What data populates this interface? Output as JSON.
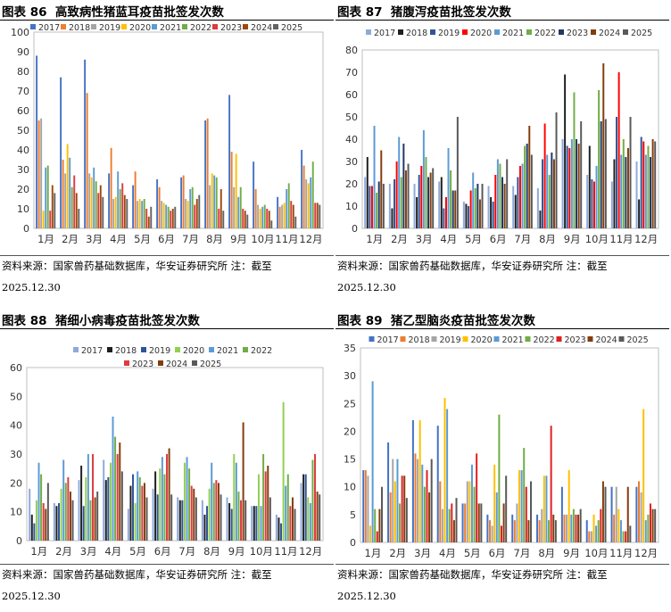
{
  "source_label": "资料来源：国家兽药基础数据库，华安证券研究所 注：截至",
  "source_date": "2025.12.30",
  "charts": [
    {
      "id": "fig86",
      "fig_no": "图表 86",
      "fig_title": "高致病性猪蓝耳疫苗批签发次数",
      "chart_data": {
        "type": "bar",
        "title": "高致病性猪蓝耳疫苗批签发次数",
        "categories": [
          "1月",
          "2月",
          "3月",
          "4月",
          "5月",
          "6月",
          "7月",
          "8月",
          "9月",
          "10月",
          "11月",
          "12月"
        ],
        "ylim": [
          0,
          100
        ],
        "yticks": [
          0,
          10,
          20,
          30,
          40,
          50,
          60,
          70,
          80,
          90,
          100
        ],
        "legend_position": "top",
        "series": [
          {
            "name": "2017",
            "color": "#4472C4",
            "values": [
              88,
              77,
              86,
              28,
              22,
              25,
              26,
              55,
              68,
              34,
              16,
              40
            ]
          },
          {
            "name": "2018",
            "color": "#ED7D31",
            "values": [
              55,
              35,
              69,
              41,
              29,
              21,
              27,
              56,
              39,
              20,
              11,
              32
            ]
          },
          {
            "name": "2019",
            "color": "#A5A5A5",
            "values": [
              56,
              28,
              28,
              15,
              14,
              14,
              15,
              22,
              21,
              12,
              12,
              25
            ]
          },
          {
            "name": "2020",
            "color": "#FFC000",
            "values": [
              9,
              43,
              26,
              16,
              15,
              13,
              14,
              28,
              38,
              10,
              13,
              23
            ]
          },
          {
            "name": "2021",
            "color": "#5B9BD5",
            "values": [
              31,
              36,
              31,
              29,
              14,
              12,
              20,
              27,
              16,
              11,
              20,
              26
            ]
          },
          {
            "name": "2022",
            "color": "#70AD47",
            "values": [
              32,
              21,
              24,
              20,
              15,
              11,
              21,
              26,
              21,
              12,
              23,
              34
            ]
          },
          {
            "name": "2023",
            "color": "#E0393E",
            "values": [
              9,
              27,
              18,
              23,
              10,
              9,
              12,
              10,
              10,
              10,
              14,
              13
            ]
          },
          {
            "name": "2024",
            "color": "#9E480E",
            "values": [
              22,
              18,
              22,
              17,
              6,
              10,
              15,
              20,
              9,
              9,
              12,
              13
            ]
          },
          {
            "name": "2025",
            "color": "#636363",
            "values": [
              18,
              10,
              16,
              15,
              11,
              11,
              17,
              9,
              7,
              4,
              6,
              12
            ]
          }
        ]
      }
    },
    {
      "id": "fig87",
      "fig_no": "图表 87",
      "fig_title": "猪腹泻疫苗批签发次数",
      "chart_data": {
        "type": "bar",
        "title": "猪腹泻疫苗批签发次数",
        "categories": [
          "1月",
          "2月",
          "3月",
          "4月",
          "5月",
          "6月",
          "7月",
          "8月",
          "9月",
          "10月",
          "11月",
          "12月"
        ],
        "ylim": [
          0,
          80
        ],
        "yticks": [
          0,
          10,
          20,
          30,
          40,
          50,
          60,
          70,
          80
        ],
        "legend_position": "top",
        "series": [
          {
            "name": "2017",
            "color": "#8EA9DB",
            "values": [
              23,
              20,
              20,
              21,
              12,
              19,
              19,
              18,
              40,
              24,
              21,
              30
            ]
          },
          {
            "name": "2018",
            "color": "#1F1F1F",
            "values": [
              32,
              9,
              14,
              23,
              11,
              14,
              15,
              8,
              69,
              37,
              31,
              13
            ]
          },
          {
            "name": "2019",
            "color": "#2F5597",
            "values": [
              19,
              22,
              24,
              9,
              10,
              12,
              23,
              31,
              37,
              22,
              50,
              41
            ]
          },
          {
            "name": "2020",
            "color": "#FF0000",
            "values": [
              19,
              30,
              28,
              14,
              17,
              24,
              28,
              47,
              36,
              21,
              70,
              39
            ]
          },
          {
            "name": "2021",
            "color": "#5B9BD5",
            "values": [
              46,
              41,
              44,
              36,
              25,
              31,
              29,
              33,
              40,
              28,
              33,
              33
            ]
          },
          {
            "name": "2022",
            "color": "#70AD47",
            "values": [
              16,
              23,
              32,
              26,
              18,
              29,
              37,
              24,
              61,
              62,
              40,
              37
            ]
          },
          {
            "name": "2023",
            "color": "#1F3864",
            "values": [
              21,
              38,
              23,
              17,
              20,
              23,
              38,
              34,
              40,
              48,
              32,
              32
            ]
          },
          {
            "name": "2024",
            "color": "#843C0C",
            "values": [
              35,
              26,
              25,
              17,
              13,
              20,
              46,
              31,
              38,
              74,
              36,
              40
            ]
          },
          {
            "name": "2025",
            "color": "#595959",
            "values": [
              20,
              29,
              27,
              50,
              20,
              31,
              33,
              52,
              48,
              49,
              50,
              39
            ]
          }
        ]
      }
    },
    {
      "id": "fig88",
      "fig_no": "图表 88",
      "fig_title": "猪细小病毒疫苗批签发次数",
      "chart_data": {
        "type": "bar",
        "title": "猪细小病毒疫苗批签发次数",
        "categories": [
          "1月",
          "2月",
          "3月",
          "4月",
          "5月",
          "6月",
          "7月",
          "8月",
          "9月",
          "10月",
          "11月",
          "12月"
        ],
        "ylim": [
          0,
          60
        ],
        "yticks": [
          0,
          10,
          20,
          30,
          40,
          50,
          60
        ],
        "legend_position": "top",
        "series": [
          {
            "name": "2017",
            "color": "#8EA9DB",
            "values": [
              18,
              13,
              21,
              28,
              11,
              18,
              15,
              14,
              15,
              12,
              9,
              20
            ]
          },
          {
            "name": "2018",
            "color": "#1F1F1F",
            "values": [
              9,
              12,
              26,
              21,
              19,
              24,
              14,
              9,
              13,
              12,
              8,
              23
            ]
          },
          {
            "name": "2019",
            "color": "#2F5597",
            "values": [
              6,
              13,
              12,
              22,
              23,
              16,
              14,
              12,
              11,
              12,
              6,
              23
            ]
          },
          {
            "name": "2020",
            "color": "#92D050",
            "values": [
              14,
              18,
              22,
              27,
              13,
              25,
              27,
              18,
              30,
              23,
              48,
              15
            ]
          },
          {
            "name": "2021",
            "color": "#5B9BD5",
            "values": [
              27,
              28,
              30,
              43,
              24,
              29,
              29,
              27,
              27,
              12,
              19,
              13
            ]
          },
          {
            "name": "2022",
            "color": "#70AD47",
            "values": [
              23,
              20,
              14,
              36,
              22,
              23,
              25,
              20,
              17,
              30,
              23,
              28
            ]
          },
          {
            "name": "2023",
            "color": "#E0393E",
            "values": [
              13,
              22,
              30,
              30,
              19,
              30,
              19,
              21,
              14,
              24,
              12,
              30
            ]
          },
          {
            "name": "2024",
            "color": "#843C0C",
            "values": [
              11,
              17,
              15,
              34,
              20,
              32,
              18,
              20,
              41,
              26,
              15,
              17
            ]
          },
          {
            "name": "2025",
            "color": "#595959",
            "values": [
              20,
              14,
              17,
              24,
              15,
              16,
              15,
              16,
              14,
              15,
              11,
              16
            ]
          }
        ]
      }
    },
    {
      "id": "fig89",
      "fig_no": "图表 89",
      "fig_title": "猪乙型脑炎疫苗批签发次数",
      "chart_data": {
        "type": "bar",
        "title": "猪乙型脑炎疫苗批签发次数",
        "categories": [
          "1月",
          "2月",
          "3月",
          "4月",
          "5月",
          "6月",
          "7月",
          "8月",
          "9月",
          "10月",
          "11月",
          "12月"
        ],
        "ylim": [
          0,
          35
        ],
        "yticks": [
          0,
          5,
          10,
          15,
          20,
          25,
          30,
          35
        ],
        "legend_position": "top",
        "series": [
          {
            "name": "2017",
            "color": "#4472C4",
            "values": [
              13,
              18,
              22,
              21,
              7,
              5,
              5,
              5,
              10,
              4,
              10,
              10
            ]
          },
          {
            "name": "2018",
            "color": "#ED7D31",
            "values": [
              13,
              9,
              16,
              11,
              7,
              4,
              4,
              4,
              5,
              2,
              5,
              11
            ]
          },
          {
            "name": "2019",
            "color": "#A5A5A5",
            "values": [
              12,
              15,
              15,
              6,
              11,
              3,
              7,
              6,
              5,
              2,
              10,
              9
            ]
          },
          {
            "name": "2020",
            "color": "#FFC000",
            "values": [
              3,
              11,
              22,
              26,
              11,
              14,
              13,
              12,
              13,
              5,
              6,
              24
            ]
          },
          {
            "name": "2021",
            "color": "#5B9BD5",
            "values": [
              29,
              15,
              14,
              24,
              14,
              9,
              13,
              12,
              5,
              3,
              4,
              4
            ]
          },
          {
            "name": "2022",
            "color": "#70AD47",
            "values": [
              6,
              7,
              10,
              6,
              10,
              23,
              17,
              4,
              6,
              4,
              2,
              5
            ]
          },
          {
            "name": "2023",
            "color": "#E02020",
            "values": [
              2,
              12,
              13,
              7,
              16,
              3,
              10,
              21,
              5,
              6,
              2,
              7
            ]
          },
          {
            "name": "2024",
            "color": "#843C0C",
            "values": [
              6,
              12,
              9,
              4,
              7,
              7,
              4,
              5,
              5,
              11,
              10,
              6
            ]
          },
          {
            "name": "2025",
            "color": "#595959",
            "values": [
              10,
              8,
              15,
              8,
              7,
              12,
              11,
              4,
              6,
              10,
              3,
              6
            ]
          }
        ]
      }
    }
  ]
}
